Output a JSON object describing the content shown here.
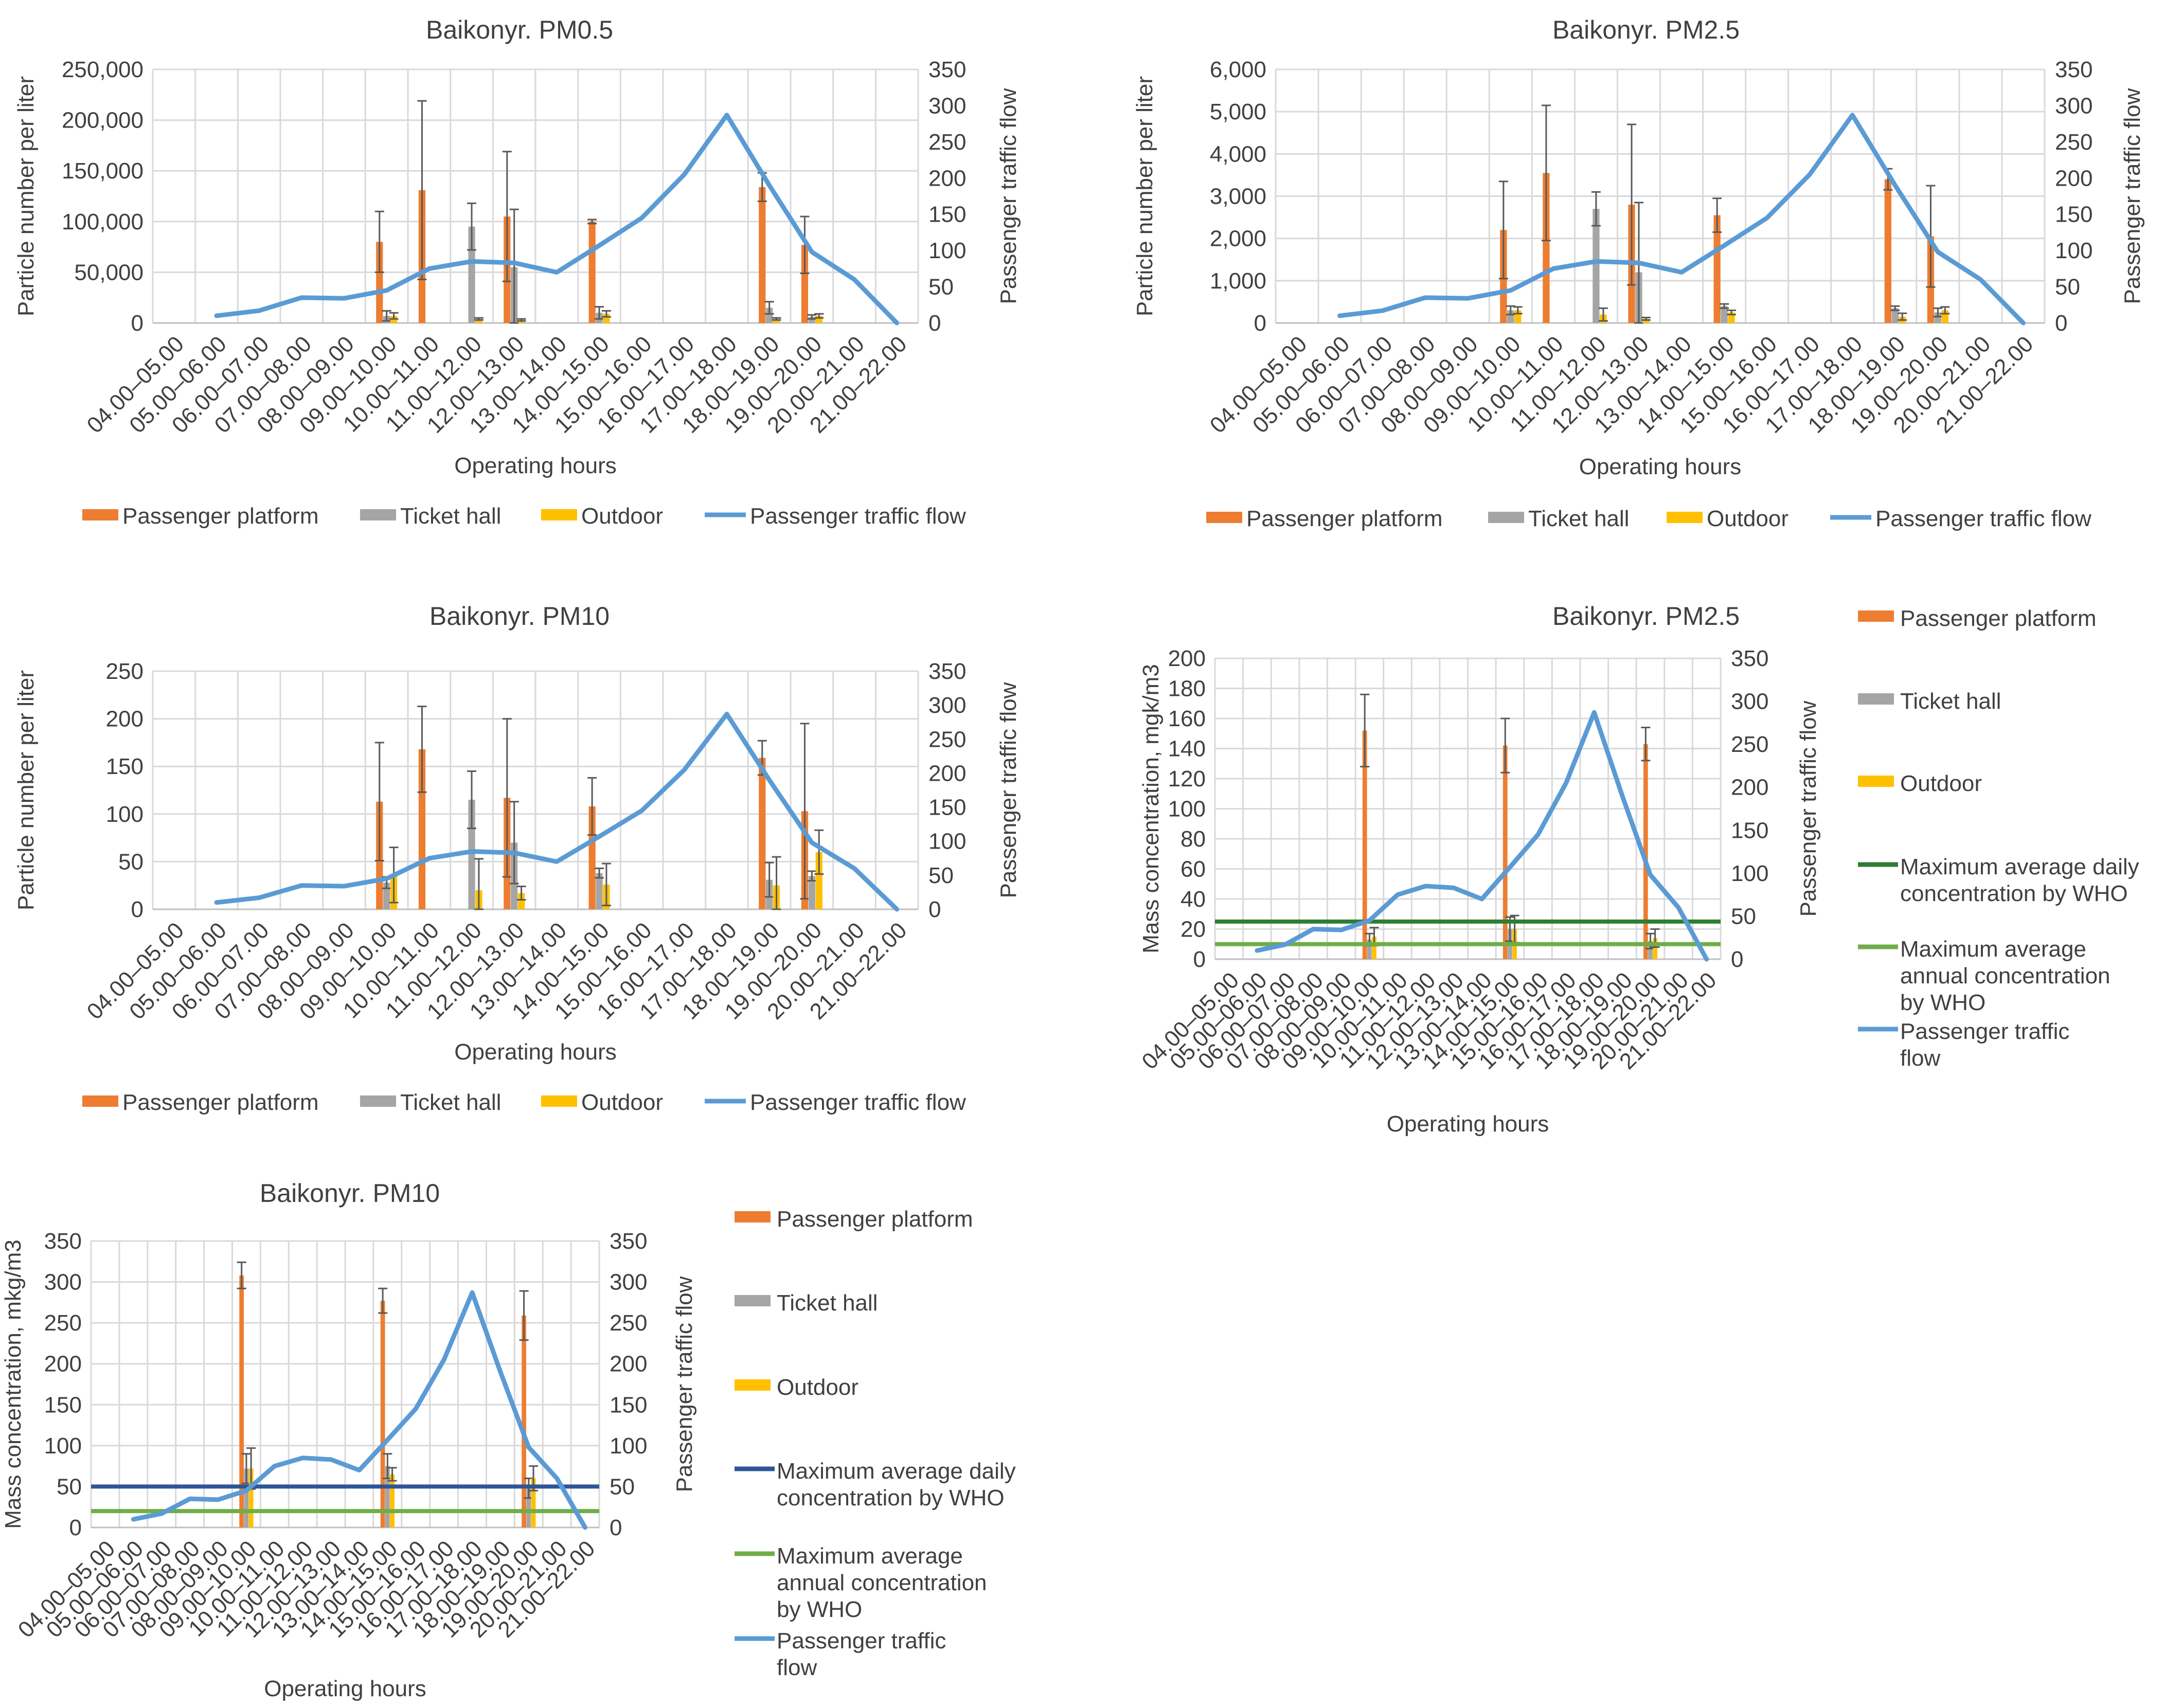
{
  "colors": {
    "platform": "#ed7d31",
    "ticket_hall": "#a5a5a5",
    "outdoor": "#ffc000",
    "traffic": "#5b9bd5",
    "who_daily_pm25": "#2e7d32",
    "who_annual_pm25": "#70ad47",
    "who_daily_pm10": "#2e5597",
    "who_annual_pm10": "#70ad47"
  },
  "chart_data": [
    {
      "type": "bar",
      "title": "Baikonyr. PM0.5",
      "xlabel": "Operating hours",
      "ylabel": "Particle number per liter",
      "y2label": "Passenger traffic flow",
      "ylim": [
        0,
        250000
      ],
      "yticks": [
        "0",
        "50,000",
        "100,000",
        "150,000",
        "200,000",
        "250,000"
      ],
      "y2lim": [
        0,
        350
      ],
      "y2ticks": [
        "0",
        "50",
        "100",
        "150",
        "200",
        "250",
        "300",
        "350"
      ],
      "categories": [
        "04.00–05.00",
        "05.00–06.00",
        "06.00–07.00",
        "07.00–08.00",
        "08.00–09.00",
        "09.00–10.00",
        "10.00–11.00",
        "11.00–12.00",
        "12.00–13.00",
        "13.00–14.00",
        "14.00–15.00",
        "15.00–16.00",
        "16.00–17.00",
        "17.00–18.00",
        "18.00–19.00",
        "19.00–20.00",
        "20.00–21.00",
        "21.00–22.00"
      ],
      "series": [
        {
          "name": "Passenger platform",
          "key": "platform",
          "values": [
            null,
            null,
            null,
            null,
            null,
            80000,
            131000,
            null,
            105000,
            null,
            100000,
            null,
            null,
            null,
            134000,
            77000,
            null,
            null
          ],
          "errors": [
            null,
            null,
            null,
            null,
            null,
            30000,
            88000,
            null,
            64000,
            null,
            2000,
            null,
            null,
            null,
            14000,
            28000,
            null,
            null
          ]
        },
        {
          "name": "Ticket hall",
          "key": "ticket_hall",
          "values": [
            null,
            null,
            null,
            null,
            null,
            7000,
            null,
            95000,
            55000,
            null,
            10000,
            null,
            null,
            null,
            15000,
            6000,
            null,
            null
          ],
          "errors": [
            null,
            null,
            null,
            null,
            null,
            5000,
            null,
            23000,
            57000,
            null,
            6000,
            null,
            null,
            null,
            6000,
            2000,
            null,
            null
          ]
        },
        {
          "name": "Outdoor",
          "key": "outdoor",
          "values": [
            null,
            null,
            null,
            null,
            null,
            7000,
            null,
            4000,
            3000,
            null,
            9000,
            null,
            null,
            null,
            4000,
            7000,
            null,
            null
          ],
          "errors": [
            null,
            null,
            null,
            null,
            null,
            3000,
            null,
            1000,
            1000,
            null,
            3000,
            null,
            null,
            null,
            1000,
            2000,
            null,
            null
          ]
        }
      ],
      "traffic_flow": {
        "name": "Passenger traffic flow",
        "values": [
          null,
          10,
          17,
          35,
          34,
          45,
          75,
          85,
          83,
          70,
          107,
          145,
          205,
          287,
          190,
          98,
          60,
          0
        ]
      },
      "legend": "bottom"
    },
    {
      "type": "bar",
      "title": "Baikonyr. PM2.5",
      "xlabel": "Operating hours",
      "ylabel": "Particle number per liter",
      "y2label": "Passenger traffic flow",
      "ylim": [
        0,
        6000
      ],
      "yticks": [
        "0",
        "1,000",
        "2,000",
        "3,000",
        "4,000",
        "5,000",
        "6,000"
      ],
      "y2lim": [
        0,
        350
      ],
      "y2ticks": [
        "0",
        "50",
        "100",
        "150",
        "200",
        "250",
        "300",
        "350"
      ],
      "categories": [
        "04.00–05.00",
        "05.00–06.00",
        "06.00–07.00",
        "07.00–08.00",
        "08.00–09.00",
        "09.00–10.00",
        "10.00–11.00",
        "11.00–12.00",
        "12.00–13.00",
        "13.00–14.00",
        "14.00–15.00",
        "15.00–16.00",
        "16.00–17.00",
        "17.00–18.00",
        "18.00–19.00",
        "19.00–20.00",
        "20.00–21.00",
        "21.00–22.00"
      ],
      "series": [
        {
          "name": "Passenger platform",
          "key": "platform",
          "values": [
            null,
            null,
            null,
            null,
            null,
            2200,
            3550,
            null,
            2800,
            null,
            2550,
            null,
            null,
            null,
            3400,
            2050,
            null,
            null
          ],
          "errors": [
            null,
            null,
            null,
            null,
            null,
            1150,
            1600,
            null,
            1900,
            null,
            400,
            null,
            null,
            null,
            250,
            1200,
            null,
            null
          ]
        },
        {
          "name": "Ticket hall",
          "key": "ticket_hall",
          "values": [
            null,
            null,
            null,
            null,
            null,
            300,
            null,
            2700,
            1200,
            null,
            400,
            null,
            null,
            null,
            350,
            250,
            null,
            null
          ],
          "errors": [
            null,
            null,
            null,
            null,
            null,
            100,
            null,
            400,
            1650,
            null,
            50,
            null,
            null,
            null,
            50,
            100,
            null,
            null
          ]
        },
        {
          "name": "Outdoor",
          "key": "outdoor",
          "values": [
            null,
            null,
            null,
            null,
            null,
            300,
            null,
            200,
            100,
            null,
            250,
            null,
            null,
            null,
            150,
            300,
            null,
            null
          ],
          "errors": [
            null,
            null,
            null,
            null,
            null,
            80,
            null,
            150,
            30,
            null,
            50,
            null,
            null,
            null,
            80,
            80,
            null,
            null
          ]
        }
      ],
      "traffic_flow": {
        "name": "Passenger traffic flow",
        "values": [
          null,
          10,
          17,
          35,
          34,
          45,
          75,
          85,
          83,
          70,
          107,
          145,
          205,
          287,
          190,
          98,
          60,
          0
        ]
      },
      "legend": "bottom"
    },
    {
      "type": "bar",
      "title": "Baikonyr. PM10",
      "xlabel": "Operating hours",
      "ylabel": "Particle number per liter",
      "y2label": "Passenger traffic flow",
      "ylim": [
        0,
        250
      ],
      "yticks": [
        "0",
        "50",
        "100",
        "150",
        "200",
        "250"
      ],
      "y2lim": [
        0,
        350
      ],
      "y2ticks": [
        "0",
        "50",
        "100",
        "150",
        "200",
        "250",
        "300",
        "350"
      ],
      "categories": [
        "04.00–05.00",
        "05.00–06.00",
        "06.00–07.00",
        "07.00–08.00",
        "08.00–09.00",
        "09.00–10.00",
        "10.00–11.00",
        "11.00–12.00",
        "12.00–13.00",
        "13.00–14.00",
        "14.00–15.00",
        "15.00–16.00",
        "16.00–17.00",
        "17.00–18.00",
        "18.00–19.00",
        "19.00–20.00",
        "20.00–21.00",
        "21.00–22.00"
      ],
      "series": [
        {
          "name": "Passenger platform",
          "key": "platform",
          "values": [
            null,
            null,
            null,
            null,
            null,
            113,
            168,
            null,
            117,
            null,
            108,
            null,
            null,
            null,
            159,
            103,
            null,
            null
          ],
          "errors": [
            null,
            null,
            null,
            null,
            null,
            62,
            45,
            null,
            83,
            null,
            30,
            null,
            null,
            null,
            18,
            92,
            null,
            null
          ]
        },
        {
          "name": "Ticket hall",
          "key": "ticket_hall",
          "values": [
            null,
            null,
            null,
            null,
            null,
            28,
            null,
            115,
            70,
            null,
            38,
            null,
            null,
            null,
            31,
            35,
            null,
            null
          ],
          "errors": [
            null,
            null,
            null,
            null,
            null,
            6,
            null,
            30,
            43,
            null,
            5,
            null,
            null,
            null,
            18,
            5,
            null,
            null
          ]
        },
        {
          "name": "Outdoor",
          "key": "outdoor",
          "values": [
            null,
            null,
            null,
            null,
            null,
            36,
            null,
            20,
            17,
            null,
            26,
            null,
            null,
            null,
            25,
            60,
            null,
            null
          ],
          "errors": [
            null,
            null,
            null,
            null,
            null,
            29,
            null,
            33,
            7,
            null,
            22,
            null,
            null,
            null,
            30,
            23,
            null,
            null
          ]
        }
      ],
      "traffic_flow": {
        "name": "Passenger traffic flow",
        "values": [
          null,
          10,
          17,
          35,
          34,
          45,
          75,
          85,
          83,
          70,
          107,
          145,
          205,
          287,
          190,
          98,
          60,
          0
        ]
      },
      "legend": "bottom"
    },
    {
      "type": "bar",
      "title": "Baikonyr. PM2.5",
      "xlabel": "Operating hours",
      "ylabel": "Mass concentration, mgk/m3",
      "y2label": "Passenger traffic flow",
      "ylim": [
        0,
        200
      ],
      "yticks": [
        "0",
        "20",
        "40",
        "60",
        "80",
        "100",
        "120",
        "140",
        "160",
        "180",
        "200"
      ],
      "y2lim": [
        0,
        350
      ],
      "y2ticks": [
        "0",
        "50",
        "100",
        "150",
        "200",
        "250",
        "300",
        "350"
      ],
      "categories": [
        "04.00–05.00",
        "05.00–06.00",
        "06.00–07.00",
        "07.00–08.00",
        "08.00–09.00",
        "09.00–10.00",
        "10.00–11.00",
        "11.00–12.00",
        "12.00–13.00",
        "13.00–14.00",
        "14.00–15.00",
        "15.00–16.00",
        "16.00–17.00",
        "17.00–18.00",
        "18.00–19.00",
        "19.00–20.00",
        "20.00–21.00",
        "21.00–22.00"
      ],
      "series": [
        {
          "name": "Passenger platform",
          "key": "platform",
          "values": [
            null,
            null,
            null,
            null,
            null,
            152,
            null,
            null,
            null,
            null,
            142,
            null,
            null,
            null,
            null,
            143,
            null,
            null
          ],
          "errors": [
            null,
            null,
            null,
            null,
            null,
            24,
            null,
            null,
            null,
            null,
            18,
            null,
            null,
            null,
            null,
            11,
            null,
            null
          ]
        },
        {
          "name": "Ticket hall",
          "key": "ticket_hall",
          "values": [
            null,
            null,
            null,
            null,
            null,
            13,
            null,
            null,
            null,
            null,
            20,
            null,
            null,
            null,
            null,
            12,
            null,
            null
          ],
          "errors": [
            null,
            null,
            null,
            null,
            null,
            4,
            null,
            null,
            null,
            null,
            8,
            null,
            null,
            null,
            null,
            5,
            null,
            null
          ]
        },
        {
          "name": "Outdoor",
          "key": "outdoor",
          "values": [
            null,
            null,
            null,
            null,
            null,
            15,
            null,
            null,
            null,
            null,
            20,
            null,
            null,
            null,
            null,
            14,
            null,
            null
          ],
          "errors": [
            null,
            null,
            null,
            null,
            null,
            6,
            null,
            null,
            null,
            null,
            9,
            null,
            null,
            null,
            null,
            6,
            null,
            null
          ]
        }
      ],
      "traffic_flow": {
        "name": "Passenger traffic flow",
        "values": [
          null,
          10,
          17,
          35,
          34,
          45,
          75,
          85,
          83,
          70,
          107,
          145,
          205,
          287,
          190,
          98,
          60,
          0
        ]
      },
      "reference_lines": [
        {
          "name": "Maximum average daily concentration by WHO",
          "value": 25,
          "key": "who_daily_pm25"
        },
        {
          "name": "Maximum average annual concentration by WHO",
          "value": 10,
          "key": "who_annual_pm25"
        }
      ],
      "legend": "right"
    },
    {
      "type": "bar",
      "title": "Baikonyr. PM10",
      "xlabel": "Operating hours",
      "ylabel": "Mass concentration, mkg/m3",
      "y2label": "Passenger traffic flow",
      "ylim": [
        0,
        350
      ],
      "yticks": [
        "0",
        "50",
        "100",
        "150",
        "200",
        "250",
        "300",
        "350"
      ],
      "y2lim": [
        0,
        350
      ],
      "y2ticks": [
        "0",
        "50",
        "100",
        "150",
        "200",
        "250",
        "300",
        "350"
      ],
      "categories": [
        "04.00–05.00",
        "05.00–06.00",
        "06.00–07.00",
        "07.00–08.00",
        "08.00–09.00",
        "09.00–10.00",
        "10.00–11.00",
        "11.00–12.00",
        "12.00–13.00",
        "13.00–14.00",
        "14.00–15.00",
        "15.00–16.00",
        "16.00–17.00",
        "17.00–18.00",
        "18.00–19.00",
        "19.00–20.00",
        "20.00–21.00",
        "21.00–22.00"
      ],
      "series": [
        {
          "name": "Passenger platform",
          "key": "platform",
          "values": [
            null,
            null,
            null,
            null,
            null,
            308,
            null,
            null,
            null,
            null,
            277,
            null,
            null,
            null,
            null,
            259,
            null,
            null
          ],
          "errors": [
            null,
            null,
            null,
            null,
            null,
            16,
            null,
            null,
            null,
            null,
            15,
            null,
            null,
            null,
            null,
            30,
            null,
            null
          ]
        },
        {
          "name": "Ticket hall",
          "key": "ticket_hall",
          "values": [
            null,
            null,
            null,
            null,
            null,
            72,
            null,
            null,
            null,
            null,
            75,
            null,
            null,
            null,
            null,
            48,
            null,
            null
          ],
          "errors": [
            null,
            null,
            null,
            null,
            null,
            18,
            null,
            null,
            null,
            null,
            15,
            null,
            null,
            null,
            null,
            12,
            null,
            null
          ]
        },
        {
          "name": "Outdoor",
          "key": "outdoor",
          "values": [
            null,
            null,
            null,
            null,
            null,
            72,
            null,
            null,
            null,
            null,
            65,
            null,
            null,
            null,
            null,
            60,
            null,
            null
          ],
          "errors": [
            null,
            null,
            null,
            null,
            null,
            25,
            null,
            null,
            null,
            null,
            8,
            null,
            null,
            null,
            null,
            15,
            null,
            null
          ]
        }
      ],
      "traffic_flow": {
        "name": "Passenger traffic flow",
        "values": [
          null,
          10,
          17,
          35,
          34,
          45,
          75,
          85,
          83,
          70,
          107,
          145,
          205,
          287,
          190,
          98,
          60,
          0
        ]
      },
      "reference_lines": [
        {
          "name": "Maximum average daily concentration by WHO",
          "value": 50,
          "key": "who_daily_pm10"
        },
        {
          "name": "Maximum average annual concentration by WHO",
          "value": 20,
          "key": "who_annual_pm10"
        }
      ],
      "legend": "right"
    }
  ]
}
